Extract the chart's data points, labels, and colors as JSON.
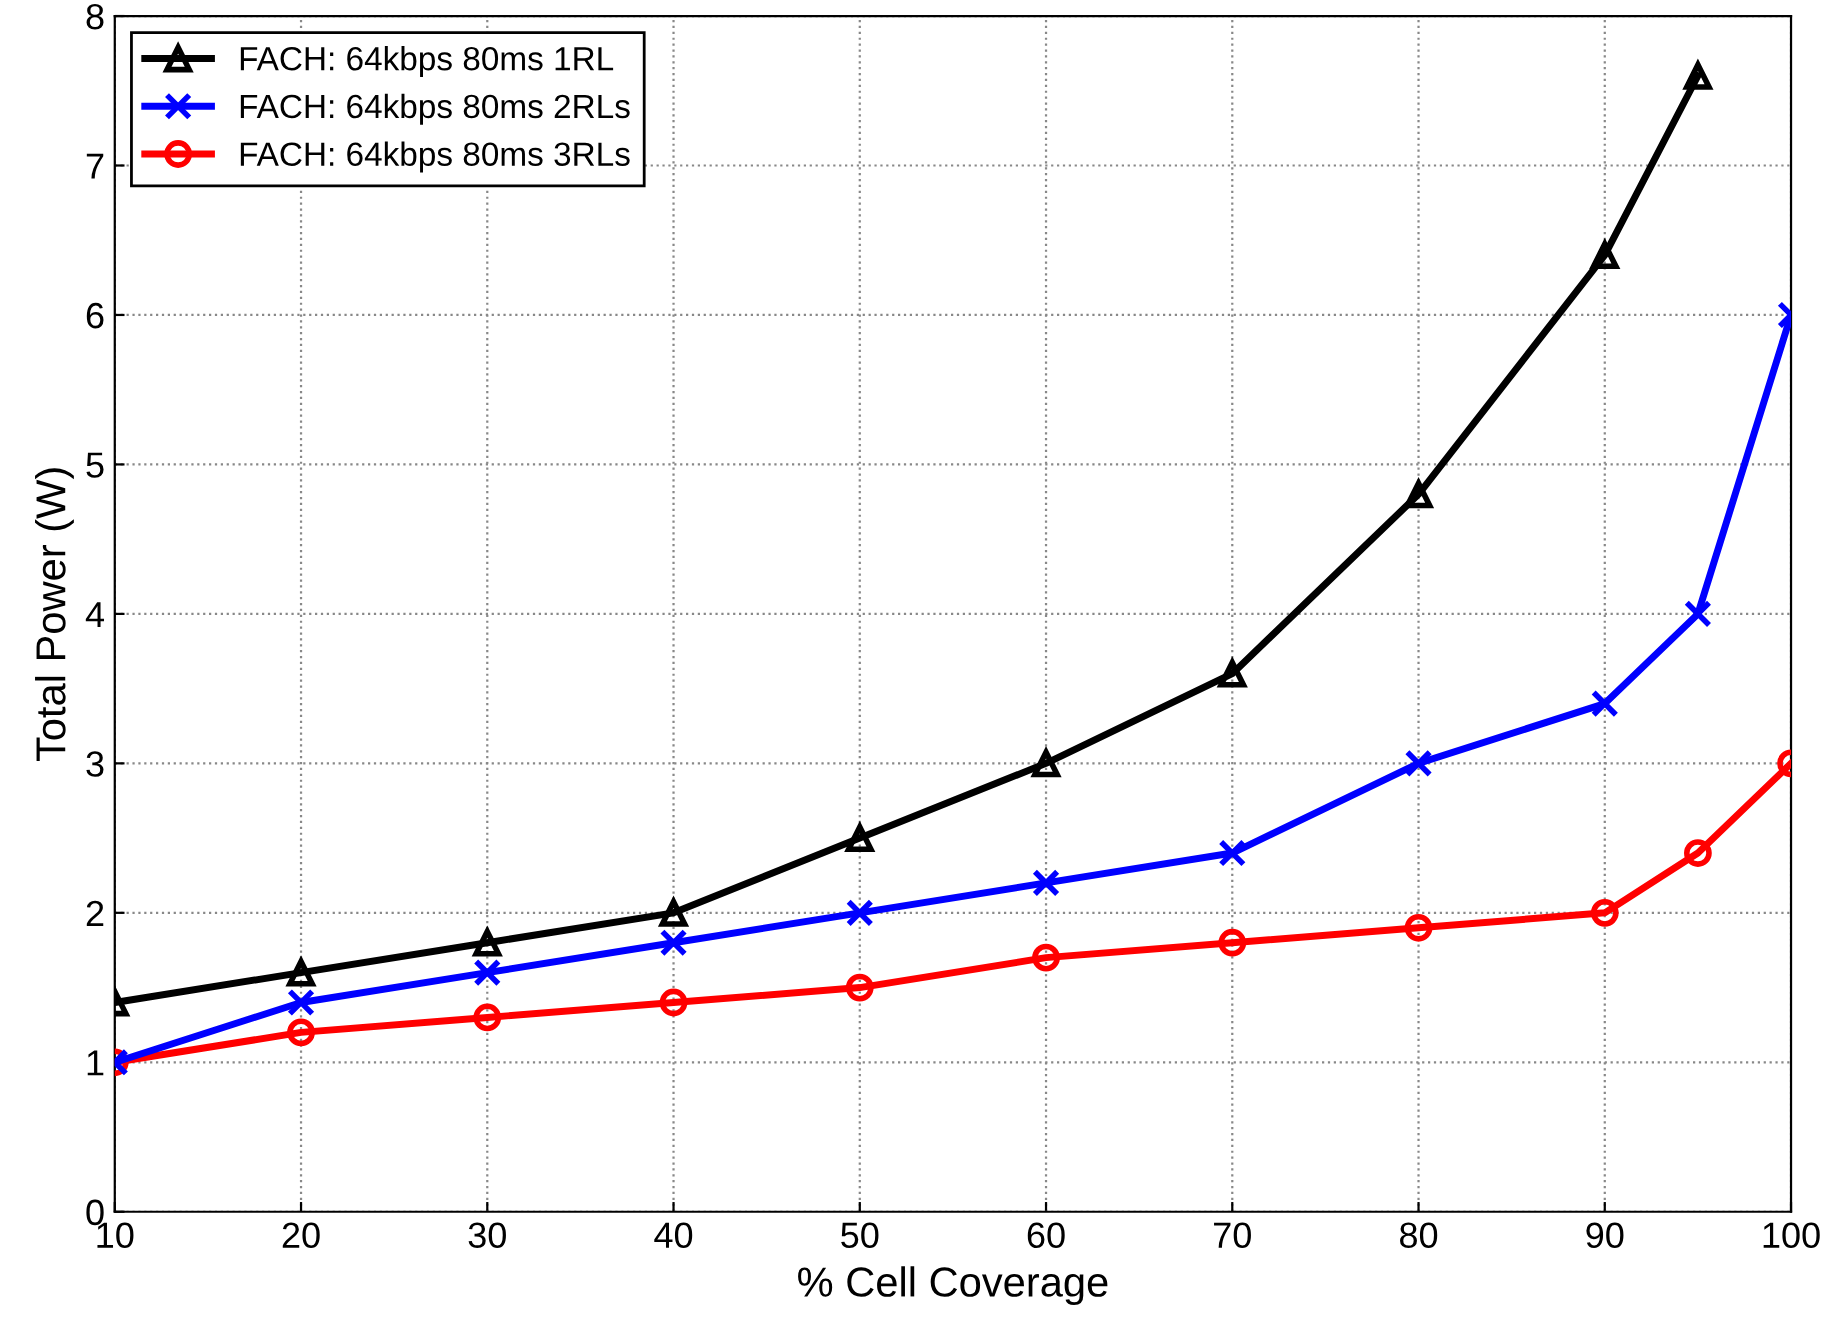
{
  "chart_data": {
    "type": "line",
    "xlabel": "% Cell Coverage",
    "ylabel": "Total Power (W)",
    "x": [
      10,
      20,
      30,
      40,
      50,
      60,
      70,
      80,
      90,
      95,
      100
    ],
    "series": [
      {
        "name": "FACH: 64kbps 80ms 1RL",
        "color": "#000000",
        "marker": "triangle",
        "values": [
          1.4,
          1.6,
          1.8,
          2.0,
          2.5,
          3.0,
          3.6,
          4.8,
          6.4,
          7.6,
          null
        ]
      },
      {
        "name": "FACH: 64kbps 80ms 2RLs",
        "color": "#0000ff",
        "marker": "cross",
        "values": [
          1.0,
          1.4,
          1.6,
          1.8,
          2.0,
          2.2,
          2.4,
          3.0,
          3.4,
          4.0,
          6.0
        ]
      },
      {
        "name": "FACH: 64kbps 80ms 3RLs",
        "color": "#ff0000",
        "marker": "circle",
        "values": [
          1.0,
          1.2,
          1.3,
          1.4,
          1.5,
          1.7,
          1.8,
          1.9,
          2.0,
          2.4,
          3.0
        ]
      }
    ],
    "xlim": [
      10,
      100
    ],
    "xticks": [
      10,
      20,
      30,
      40,
      50,
      60,
      70,
      80,
      90,
      100
    ],
    "ylim": [
      0,
      8
    ],
    "yticks": [
      0,
      1,
      2,
      3,
      4,
      5,
      6,
      7,
      8
    ],
    "grid": true,
    "legend": "top left",
    "line_style": "solid"
  }
}
